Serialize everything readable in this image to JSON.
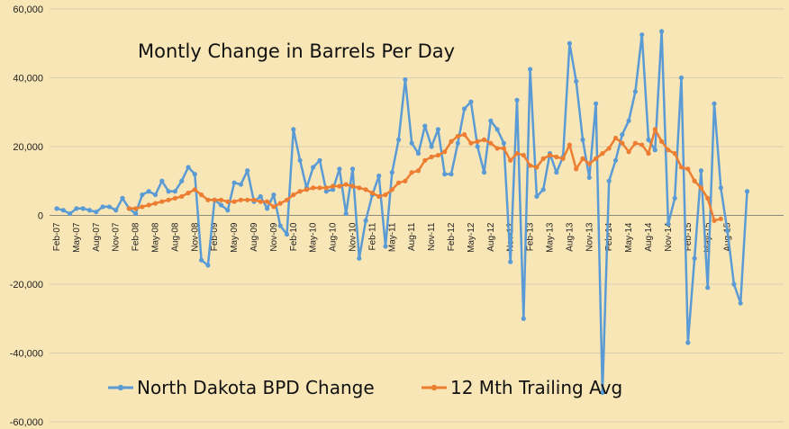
{
  "chart_data": {
    "type": "line",
    "title": "Montly Change in Barrels Per Day",
    "xlabel": "",
    "ylabel": "",
    "ylim": [
      -60000,
      60000
    ],
    "y_ticks": [
      60000,
      40000,
      20000,
      0,
      -20000,
      -40000,
      -60000
    ],
    "y_tick_labels": [
      "60,000",
      "40,000",
      "20,000",
      "0",
      "-20,000",
      "-40,000",
      "-60,000"
    ],
    "x_tick_labels": [
      "Feb-07",
      "May-07",
      "Aug-07",
      "Nov-07",
      "Feb-08",
      "May-08",
      "Aug-08",
      "Nov-08",
      "Feb-09",
      "May-09",
      "Aug-09",
      "Nov-09",
      "Feb-10",
      "May-10",
      "Aug-10",
      "Nov-10",
      "Feb-11",
      "May-11",
      "Aug-11",
      "Nov-11",
      "Feb-12",
      "May-12",
      "Aug-12",
      "Nov-12",
      "Feb-13",
      "May-13",
      "Aug-13",
      "Nov-13",
      "Feb-14",
      "May-14",
      "Aug-14",
      "Nov-14",
      "Feb-15",
      "May-15",
      "Aug-15"
    ],
    "grid": true,
    "legend_position": "bottom",
    "series": [
      {
        "name": "North Dakota BPD Change",
        "color": "#5b9bd5",
        "start_index": 0,
        "values": [
          2000,
          1500,
          500,
          2000,
          2000,
          1500,
          1000,
          2500,
          2500,
          1500,
          5000,
          2000,
          500,
          6000,
          7000,
          6000,
          10000,
          7000,
          7000,
          10000,
          14000,
          12000,
          -13000,
          -14500,
          4500,
          3000,
          1500,
          9500,
          9000,
          13000,
          4000,
          5500,
          2000,
          6000,
          -3000,
          -5500,
          25000,
          16000,
          8000,
          14000,
          16000,
          7000,
          7500,
          13500,
          500,
          13500,
          -12500,
          -1500,
          6000,
          11500,
          -9000,
          12500,
          22000,
          39500,
          21000,
          18000,
          26000,
          20000,
          25000,
          12000,
          12000,
          21000,
          31000,
          33000,
          20000,
          12500,
          27500,
          25000,
          21000,
          -13500,
          33500,
          -30000,
          42500,
          5500,
          7500,
          18000,
          12500,
          17000,
          50000,
          39000,
          22000,
          11000,
          32500,
          -51500,
          10000,
          16000,
          23500,
          27500,
          36000,
          52500,
          22000,
          19000,
          53500,
          -2500,
          5000,
          40000,
          -37000,
          -12500,
          13000,
          -21000,
          32500,
          8000,
          -4500,
          -20000,
          -25500,
          7000
        ]
      },
      {
        "name": "12 Mth Trailing Avg",
        "color": "#ed7d31",
        "start_index": 11,
        "values": [
          2000,
          2000,
          2500,
          3000,
          3500,
          4000,
          4500,
          5000,
          5500,
          6500,
          7500,
          6000,
          4500,
          4500,
          4500,
          4000,
          4000,
          4500,
          4500,
          4500,
          4000,
          4000,
          2500,
          3500,
          4500,
          6000,
          7000,
          7500,
          8000,
          8000,
          8000,
          8500,
          8500,
          9000,
          8500,
          8000,
          7500,
          6500,
          5500,
          6000,
          7500,
          9500,
          10000,
          12500,
          13000,
          16000,
          17000,
          17500,
          18500,
          21500,
          23000,
          23500,
          21000,
          21500,
          22000,
          21000,
          19500,
          19500,
          16000,
          18000,
          17500,
          14500,
          14000,
          16500,
          17500,
          17000,
          16500,
          20500,
          13500,
          16500,
          15000,
          16500,
          18000,
          19500,
          22500,
          21000,
          18500,
          21000,
          20500,
          18000,
          25000,
          21500,
          19000,
          18000,
          14000,
          13500,
          10000,
          8000,
          5000,
          -1500,
          -1000
        ]
      }
    ]
  }
}
